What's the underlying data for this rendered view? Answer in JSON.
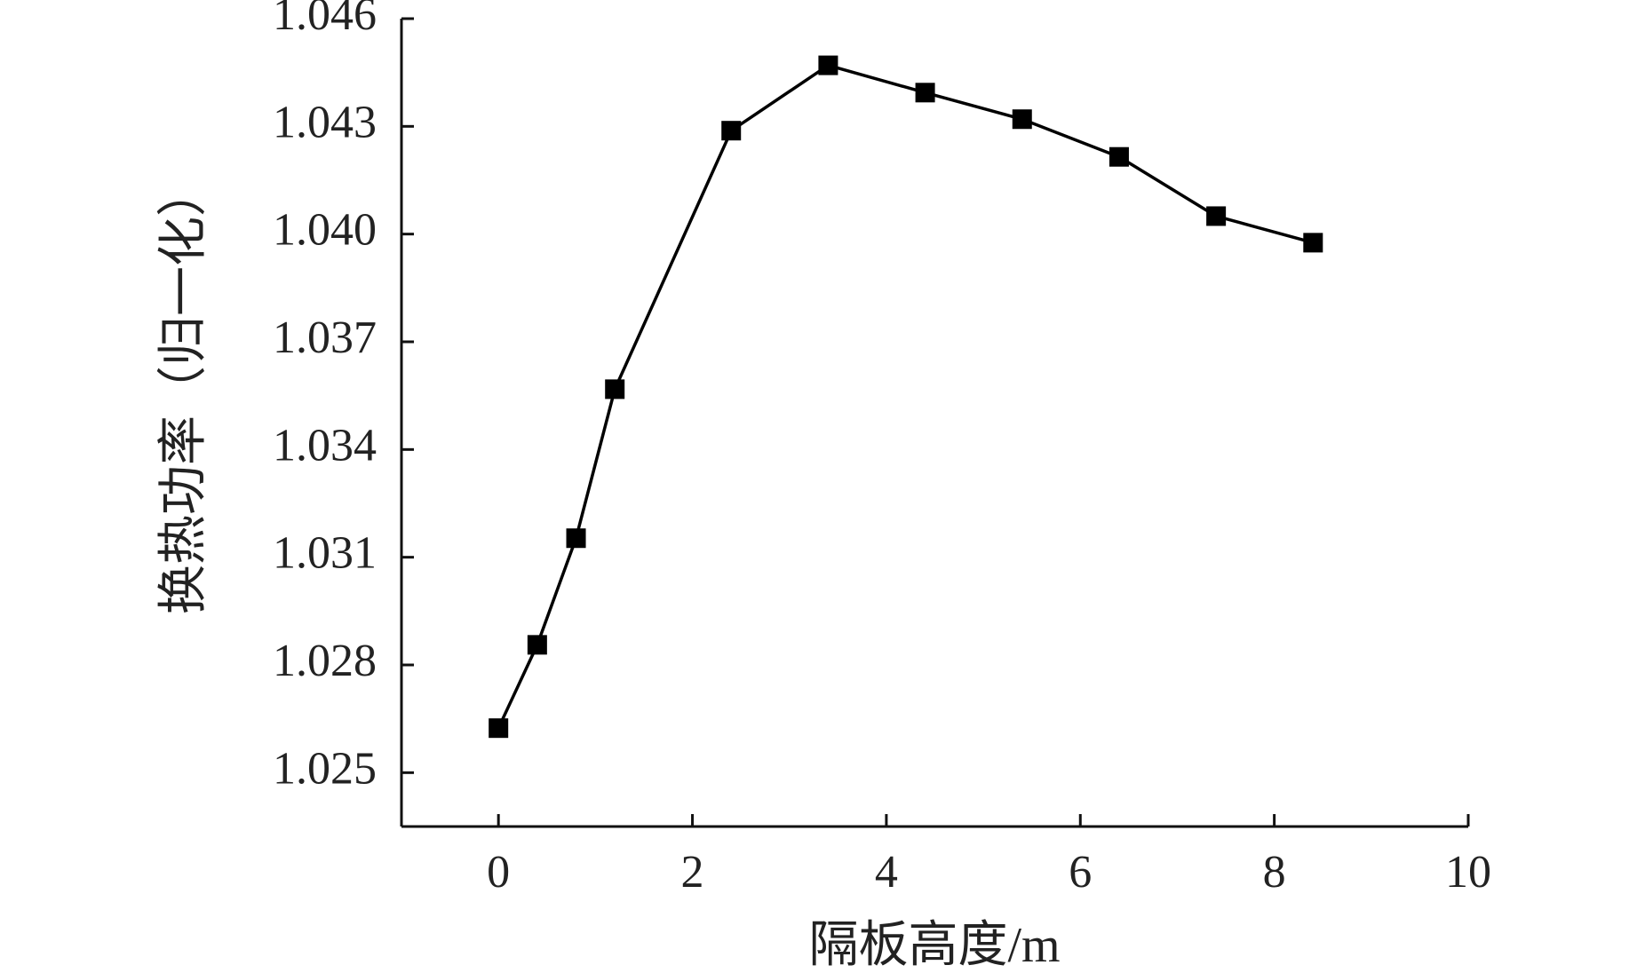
{
  "chart_data": {
    "type": "line",
    "x_label": "隔板高度/m",
    "y_label": "换热功率（归一化）",
    "x": [
      0,
      0.4,
      0.8,
      1.2,
      2.4,
      3.4,
      4.4,
      5.4,
      6.4,
      7.4,
      8.4
    ],
    "series": [
      {
        "color": "#000000",
        "values": [
          1.02624,
          1.02856,
          1.03153,
          1.03568,
          1.04288,
          1.0447,
          1.04394,
          1.0432,
          1.04215,
          1.0405,
          1.03976
        ]
      }
    ],
    "xlim": [
      -1,
      10
    ],
    "xticks": [
      0,
      2,
      4,
      6,
      8,
      10
    ],
    "ylim": [
      1.0235,
      1.046
    ],
    "yticks": [
      1.025,
      1.028,
      1.031,
      1.034,
      1.037,
      {
        "value": 1.04,
        "label": "1.040"
      },
      1.043,
      1.046
    ],
    "grid": false
  }
}
